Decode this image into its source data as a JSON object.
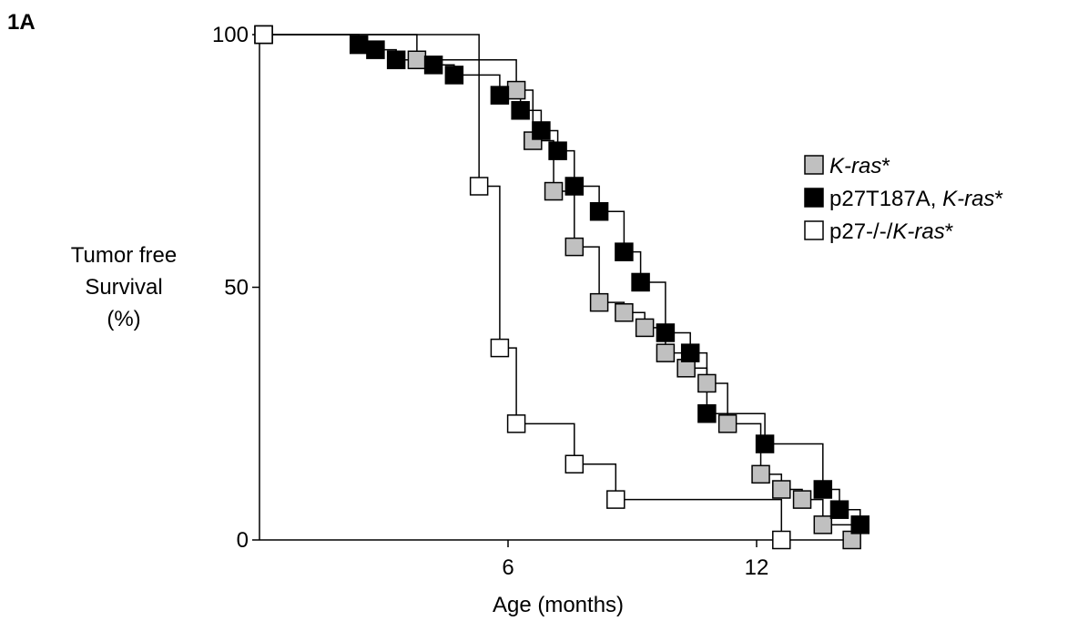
{
  "panel_label": "1A",
  "chart_data": {
    "type": "line",
    "subtype": "kaplan-meier step",
    "title": "",
    "xlabel": "Age (months)",
    "ylabel_lines": [
      "Tumor free",
      "Survival",
      "(%)"
    ],
    "xlim": [
      0,
      14.5
    ],
    "ylim": [
      0,
      100
    ],
    "xticks": [
      6,
      12
    ],
    "yticks": [
      0,
      50,
      100
    ],
    "grid": false,
    "legend_position": "right",
    "legend": [
      {
        "parts": [
          {
            "text": "K-ras",
            "italic": true
          },
          {
            "text": "*",
            "italic": false
          }
        ]
      },
      {
        "parts": [
          {
            "text": "p27T187A, ",
            "italic": false
          },
          {
            "text": "K-ras",
            "italic": true
          },
          {
            "text": "*",
            "italic": false
          }
        ]
      },
      {
        "parts": [
          {
            "text": "p27-/-/",
            "italic": false
          },
          {
            "text": "K-ras",
            "italic": true
          },
          {
            "text": "*",
            "italic": false
          }
        ]
      }
    ],
    "series": [
      {
        "fill": "#c0c0c0",
        "points": [
          [
            0.1,
            100
          ],
          [
            3.8,
            95
          ],
          [
            6.2,
            89
          ],
          [
            6.6,
            79
          ],
          [
            7.1,
            69
          ],
          [
            7.6,
            58
          ],
          [
            8.2,
            47
          ],
          [
            8.8,
            45
          ],
          [
            9.3,
            42
          ],
          [
            9.8,
            37
          ],
          [
            10.3,
            34
          ],
          [
            10.8,
            31
          ],
          [
            11.3,
            23
          ],
          [
            12.1,
            13
          ],
          [
            12.6,
            10
          ],
          [
            13.1,
            8
          ],
          [
            13.6,
            3
          ],
          [
            14.3,
            0
          ]
        ]
      },
      {
        "fill": "#000000",
        "points": [
          [
            0.1,
            100
          ],
          [
            2.4,
            98
          ],
          [
            2.8,
            97
          ],
          [
            3.3,
            95
          ],
          [
            4.2,
            94
          ],
          [
            4.7,
            92
          ],
          [
            5.8,
            88
          ],
          [
            6.3,
            85
          ],
          [
            6.8,
            81
          ],
          [
            7.2,
            77
          ],
          [
            7.6,
            70
          ],
          [
            8.2,
            65
          ],
          [
            8.8,
            57
          ],
          [
            9.2,
            51
          ],
          [
            9.8,
            41
          ],
          [
            10.4,
            37
          ],
          [
            10.8,
            25
          ],
          [
            12.2,
            19
          ],
          [
            13.6,
            10
          ],
          [
            14.0,
            6
          ],
          [
            14.5,
            3
          ]
        ]
      },
      {
        "fill": "#ffffff",
        "points": [
          [
            0.1,
            100
          ],
          [
            5.3,
            70
          ],
          [
            5.8,
            38
          ],
          [
            6.2,
            23
          ],
          [
            7.6,
            15
          ],
          [
            8.6,
            8
          ],
          [
            12.6,
            0
          ]
        ]
      }
    ]
  }
}
